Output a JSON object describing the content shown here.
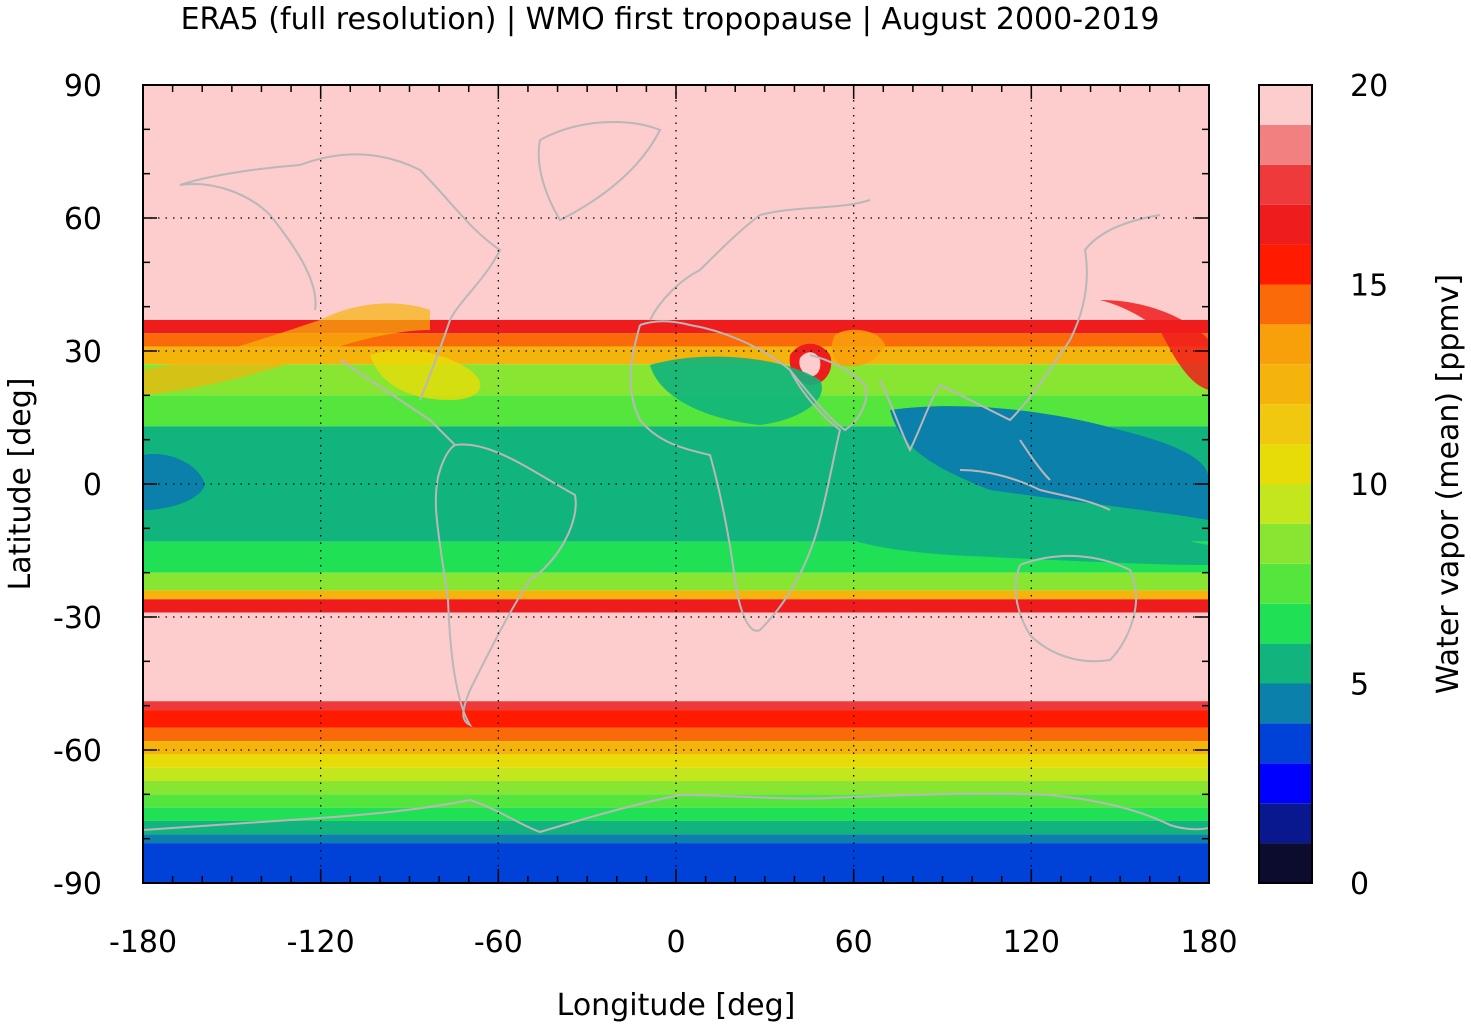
{
  "chart_data": {
    "type": "heatmap",
    "title": "ERA5 (full resolution) | WMO first tropopause | August 2000-2019",
    "xlabel": "Longitude [deg]",
    "ylabel": "Latitude [deg]",
    "colorbar_label": "Water vapor (mean) [ppmv]",
    "xlim": [
      -180,
      180
    ],
    "ylim": [
      -90,
      90
    ],
    "xticks": [
      "-180",
      "-120",
      "-60",
      "0",
      "60",
      "120",
      "180"
    ],
    "yticks": [
      "90",
      "60",
      "30",
      "0",
      "-30",
      "-60",
      "-90"
    ],
    "xtick_values": [
      -180,
      -120,
      -60,
      0,
      60,
      120,
      180
    ],
    "ytick_values": [
      90,
      60,
      30,
      0,
      -30,
      -60,
      -90
    ],
    "colorbar_range": [
      0,
      20
    ],
    "colorbar_ticks": [
      "20",
      "15",
      "10",
      "5",
      "0"
    ],
    "colorbar_tick_values": [
      20,
      15,
      10,
      5,
      0
    ],
    "grid": true,
    "colorbar_levels": [
      {
        "min": 0,
        "max": 1,
        "color": "#0c0c2e"
      },
      {
        "min": 1,
        "max": 2,
        "color": "#0a1890"
      },
      {
        "min": 2,
        "max": 3,
        "color": "#0000ff"
      },
      {
        "min": 3,
        "max": 4,
        "color": "#0042d8"
      },
      {
        "min": 4,
        "max": 5,
        "color": "#0a80aa"
      },
      {
        "min": 5,
        "max": 6,
        "color": "#10b47c"
      },
      {
        "min": 6,
        "max": 7,
        "color": "#20e055"
      },
      {
        "min": 7,
        "max": 8,
        "color": "#55e63e"
      },
      {
        "min": 8,
        "max": 9,
        "color": "#88e633"
      },
      {
        "min": 9,
        "max": 10,
        "color": "#c4e61d"
      },
      {
        "min": 10,
        "max": 11,
        "color": "#e8dc08"
      },
      {
        "min": 11,
        "max": 12,
        "color": "#f0c810"
      },
      {
        "min": 12,
        "max": 13,
        "color": "#f5b40c"
      },
      {
        "min": 13,
        "max": 14,
        "color": "#f8a00a"
      },
      {
        "min": 14,
        "max": 15,
        "color": "#fa6a08"
      },
      {
        "min": 15,
        "max": 16,
        "color": "#ff1a00"
      },
      {
        "min": 16,
        "max": 17,
        "color": "#ee1c1c"
      },
      {
        "min": 17,
        "max": 18,
        "color": "#ee3a3a"
      },
      {
        "min": 18,
        "max": 19,
        "color": "#f28080"
      },
      {
        "min": 19,
        "max": 20,
        "color": "#fdcccc"
      }
    ],
    "zonal_bands": [
      {
        "lat_top": 90,
        "lat_bottom": 37,
        "value": 19.5
      },
      {
        "lat_top": 37,
        "lat_bottom": 34,
        "value": 16.5
      },
      {
        "lat_top": 34,
        "lat_bottom": 31,
        "value": 14.5
      },
      {
        "lat_top": 31,
        "lat_bottom": 27,
        "value": 12.5
      },
      {
        "lat_top": 27,
        "lat_bottom": 20,
        "value": 8.5
      },
      {
        "lat_top": 20,
        "lat_bottom": 13,
        "value": 7.5
      },
      {
        "lat_top": 13,
        "lat_bottom": -13,
        "value": 5.5
      },
      {
        "lat_top": -13,
        "lat_bottom": -20,
        "value": 6.5
      },
      {
        "lat_top": -20,
        "lat_bottom": -24,
        "value": 8.5
      },
      {
        "lat_top": -24,
        "lat_bottom": -26,
        "value": 12.5
      },
      {
        "lat_top": -26,
        "lat_bottom": -29,
        "value": 16.5
      },
      {
        "lat_top": -29,
        "lat_bottom": -49,
        "value": 19.5
      },
      {
        "lat_top": -49,
        "lat_bottom": -51,
        "value": 17.5
      },
      {
        "lat_top": -51,
        "lat_bottom": -55,
        "value": 15.5
      },
      {
        "lat_top": -55,
        "lat_bottom": -58,
        "value": 14.5
      },
      {
        "lat_top": -58,
        "lat_bottom": -61,
        "value": 12.5
      },
      {
        "lat_top": -61,
        "lat_bottom": -64,
        "value": 10.5
      },
      {
        "lat_top": -64,
        "lat_bottom": -67,
        "value": 9.5
      },
      {
        "lat_top": -67,
        "lat_bottom": -70,
        "value": 8.5
      },
      {
        "lat_top": -70,
        "lat_bottom": -73,
        "value": 7.5
      },
      {
        "lat_top": -73,
        "lat_bottom": -76,
        "value": 6.5
      },
      {
        "lat_top": -76,
        "lat_bottom": -79,
        "value": 5.5
      },
      {
        "lat_top": -79,
        "lat_bottom": -81,
        "value": 4.5
      },
      {
        "lat_top": -81,
        "lat_bottom": -90,
        "value": 3.5
      }
    ]
  }
}
